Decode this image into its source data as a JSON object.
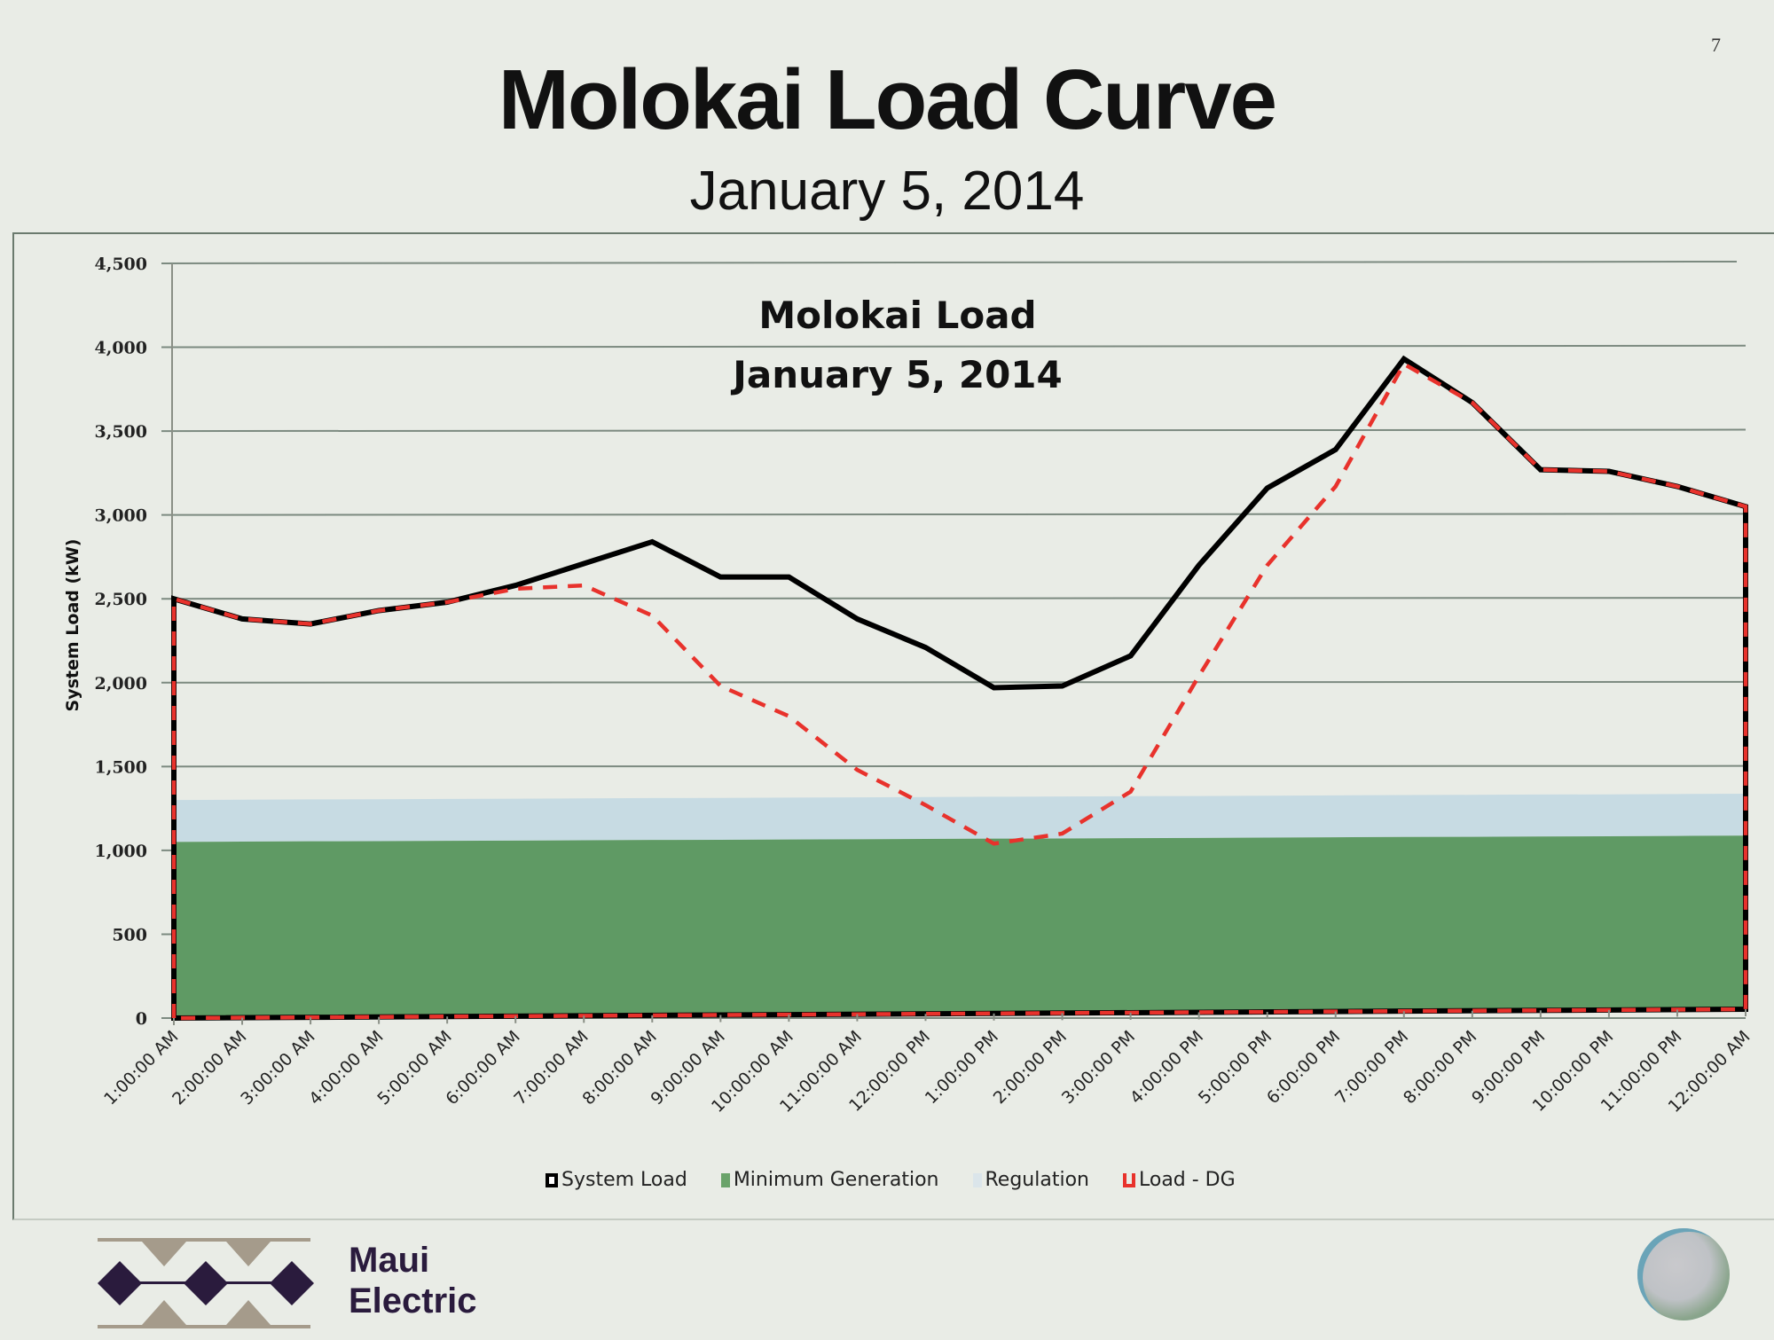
{
  "slide": {
    "number": "7",
    "title": "Molokai Load Curve",
    "subtitle": "January 5, 2014"
  },
  "footer": {
    "brand_line1": "Maui",
    "brand_line2": "Electric"
  },
  "colors": {
    "system_load": "#000000",
    "min_generation": "#5f9a64",
    "regulation": "#c7dbe3",
    "load_dg": "#e8322c",
    "gridline": "#7c8a80"
  },
  "chart_data": {
    "type": "line",
    "title": "Molokai Load",
    "subtitle": "January 5, 2014",
    "xlabel": "",
    "ylabel": "System Load (kW)",
    "ylim": [
      0,
      4500
    ],
    "yticks": [
      0,
      500,
      1000,
      1500,
      2000,
      2500,
      3000,
      3500,
      4000,
      4500
    ],
    "ytick_labels": [
      "0",
      "500",
      "1,000",
      "1,500",
      "2,000",
      "2,500",
      "3,000",
      "3,500",
      "4,000",
      "4,500"
    ],
    "grid": true,
    "legend_position": "bottom",
    "categories": [
      "1:00:00 AM",
      "2:00:00 AM",
      "3:00:00 AM",
      "4:00:00 AM",
      "5:00:00 AM",
      "6:00:00 AM",
      "7:00:00 AM",
      "8:00:00 AM",
      "9:00:00 AM",
      "10:00:00 AM",
      "11:00:00 AM",
      "12:00:00 PM",
      "1:00:00 PM",
      "2:00:00 PM",
      "3:00:00 PM",
      "4:00:00 PM",
      "5:00:00 PM",
      "6:00:00 PM",
      "7:00:00 PM",
      "8:00:00 PM",
      "9:00:00 PM",
      "10:00:00 PM",
      "11:00:00 PM",
      "12:00:00 AM"
    ],
    "series": [
      {
        "name": "System Load",
        "style": "solid-black-area-outline",
        "values": [
          2500,
          2380,
          2350,
          2430,
          2480,
          2580,
          2710,
          2840,
          2630,
          2630,
          2380,
          2210,
          1970,
          1980,
          2160,
          2700,
          3160,
          3390,
          3930,
          3670,
          3270,
          3260,
          3170,
          3050
        ]
      },
      {
        "name": "Minimum Generation",
        "style": "stacked-area-green",
        "values": [
          1050,
          1052,
          1054,
          1055,
          1057,
          1058,
          1060,
          1062,
          1063,
          1065,
          1066,
          1068,
          1070,
          1071,
          1073,
          1074,
          1076,
          1078,
          1080,
          1081,
          1083,
          1084,
          1086,
          1088
        ]
      },
      {
        "name": "Regulation",
        "style": "stacked-area-lightblue",
        "values": [
          250,
          250,
          250,
          250,
          250,
          250,
          250,
          250,
          250,
          250,
          250,
          250,
          250,
          250,
          250,
          250,
          250,
          250,
          250,
          250,
          250,
          250,
          250,
          250
        ]
      },
      {
        "name": "Load - DG",
        "style": "dashed-red-area-outline",
        "values": [
          2500,
          2380,
          2350,
          2430,
          2480,
          2560,
          2580,
          2400,
          1980,
          1800,
          1480,
          1270,
          1040,
          1100,
          1350,
          2040,
          2700,
          3170,
          3900,
          3670,
          3270,
          3260,
          3170,
          3050
        ]
      }
    ]
  }
}
